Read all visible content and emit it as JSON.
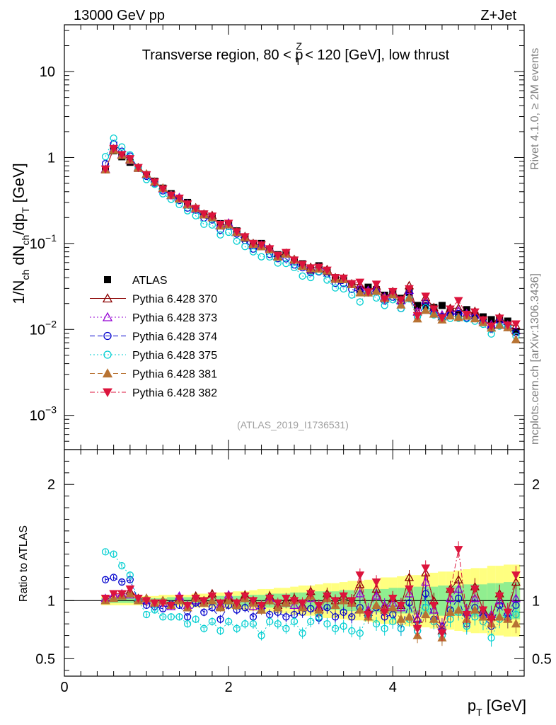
{
  "header": {
    "energy": "13000 GeV pp",
    "process": "Z+Jet"
  },
  "side": {
    "rivet": "Rivet 4.1.0, ≥ 2M events",
    "mcplots": "mcplots.cern.ch [arXiv:1306.3436]"
  },
  "chart_data": {
    "type": "scatter",
    "title": "Transverse region, 80 < p_T^Z < 120 [GeV], low thrust",
    "title_parts": {
      "pre": "Transverse region, 80 < p",
      "sup": "Z",
      "sub": "T",
      "post": " < 120 [GeV], low thrust"
    },
    "analysis": "(ATLAS_2019_I1736531)",
    "ylabel": "1/N_ch dN_ch/dp_T [GeV]",
    "ylabel_parts": [
      "1/N",
      "ch",
      " dN",
      "ch",
      "/dp",
      "T",
      " [GeV]"
    ],
    "xlabel": "p_T [GeV]",
    "xlabel_parts": [
      "p",
      "T",
      " [GeV]"
    ],
    "ratio_ylabel": "Ratio to ATLAS",
    "xlim": [
      0,
      5.6
    ],
    "ylim": [
      0.0004,
      35
    ],
    "ratio_ylim": [
      0.35,
      2.3
    ],
    "yscale": "log",
    "x_ticks": [
      "0",
      "2",
      "4"
    ],
    "y_ticks": [
      {
        "value": 10,
        "base": "10",
        "exp": ""
      },
      {
        "value": 1,
        "base": "1",
        "exp": ""
      },
      {
        "value": 0.1,
        "base": "10",
        "exp": "−1"
      },
      {
        "value": 0.01,
        "base": "10",
        "exp": "−2"
      },
      {
        "value": 0.001,
        "base": "10",
        "exp": "−3"
      }
    ],
    "ratio_ticks": [
      "0.5",
      "1",
      "2"
    ],
    "legend_position": "center-left",
    "x": [
      0.5,
      0.6,
      0.7,
      0.8,
      0.9,
      1.0,
      1.1,
      1.2,
      1.3,
      1.4,
      1.5,
      1.6,
      1.7,
      1.8,
      1.9,
      2.0,
      2.1,
      2.2,
      2.3,
      2.4,
      2.5,
      2.6,
      2.7,
      2.8,
      2.9,
      3.0,
      3.1,
      3.2,
      3.3,
      3.4,
      3.5,
      3.6,
      3.7,
      3.8,
      3.9,
      4.0,
      4.1,
      4.2,
      4.3,
      4.4,
      4.5,
      4.6,
      4.7,
      4.8,
      4.9,
      5.0,
      5.1,
      5.2,
      5.3,
      5.4,
      5.5
    ],
    "atlas": [
      0.72,
      1.2,
      1.02,
      0.88,
      0.75,
      0.63,
      0.53,
      0.44,
      0.38,
      0.33,
      0.3,
      0.25,
      0.22,
      0.2,
      0.17,
      0.165,
      0.14,
      0.115,
      0.1,
      0.1,
      0.085,
      0.074,
      0.077,
      0.064,
      0.058,
      0.049,
      0.055,
      0.047,
      0.04,
      0.038,
      0.034,
      0.029,
      0.031,
      0.029,
      0.025,
      0.027,
      0.023,
      0.027,
      0.019,
      0.019,
      0.018,
      0.019,
      0.016,
      0.015,
      0.017,
      0.0145,
      0.014,
      0.013,
      0.013,
      0.0125,
      0.0095
    ],
    "series": [
      {
        "name": "Pythia 6.428 370",
        "color": "#8b0000",
        "marker": "triangle-open",
        "dash": "",
        "ratio": [
          1.0,
          1.05,
          1.05,
          1.08,
          1.02,
          1.02,
          0.98,
          1.0,
          0.96,
          1.02,
          0.94,
          1.04,
          1.0,
          1.06,
          0.95,
          1.02,
          0.98,
          1.05,
          1.0,
          0.92,
          1.04,
          0.96,
          1.0,
          1.02,
          0.96,
          1.08,
          0.94,
          1.06,
          1.0,
          1.04,
          1.0,
          1.14,
          0.9,
          1.1,
          0.94,
          1.02,
          0.96,
          1.2,
          0.84,
          1.24,
          1.0,
          0.74,
          1.1,
          1.18,
          0.9,
          1.12,
          0.92,
          0.86,
          1.06,
          0.9,
          1.16
        ]
      },
      {
        "name": "Pythia 6.428 373",
        "color": "#9400d3",
        "marker": "triangle-open",
        "dash": "2,3",
        "ratio": [
          1.02,
          1.05,
          1.06,
          1.05,
          1.0,
          1.0,
          0.97,
          0.98,
          0.95,
          1.04,
          0.96,
          1.0,
          0.98,
          1.0,
          0.97,
          1.05,
          0.96,
          1.02,
          0.95,
          0.96,
          1.02,
          0.94,
          0.98,
          0.96,
          0.95,
          1.02,
          0.95,
          1.02,
          0.96,
          1.0,
          0.98,
          1.06,
          0.92,
          1.04,
          0.96,
          0.98,
          0.94,
          1.06,
          0.85,
          1.16,
          0.92,
          0.78,
          1.02,
          1.1,
          0.9,
          1.02,
          0.9,
          0.88,
          1.0,
          0.9,
          1.02
        ]
      },
      {
        "name": "Pythia 6.428 374",
        "color": "#0000cd",
        "marker": "circle-open",
        "dash": "7,4",
        "ratio": [
          1.18,
          1.2,
          1.16,
          1.18,
          1.0,
          0.96,
          0.95,
          0.93,
          0.97,
          0.96,
          0.86,
          0.98,
          0.9,
          0.94,
          0.84,
          0.96,
          0.92,
          0.94,
          0.86,
          0.94,
          0.88,
          0.9,
          0.86,
          0.88,
          0.9,
          0.93,
          0.85,
          0.94,
          0.86,
          0.9,
          0.86,
          0.94,
          0.86,
          0.94,
          0.86,
          0.88,
          0.76,
          0.98,
          0.74,
          1.06,
          0.84,
          0.74,
          0.92,
          1.02,
          0.8,
          0.94,
          0.86,
          0.78,
          0.96,
          0.84,
          0.96
        ]
      },
      {
        "name": "Pythia 6.428 375",
        "color": "#00ced1",
        "marker": "circle-open",
        "dash": "2,3",
        "ratio": [
          1.42,
          1.4,
          1.3,
          1.22,
          1.0,
          0.88,
          0.92,
          0.86,
          0.86,
          0.86,
          0.8,
          0.84,
          0.76,
          0.82,
          0.74,
          0.82,
          0.76,
          0.8,
          0.8,
          0.7,
          0.82,
          0.8,
          0.76,
          0.82,
          0.72,
          0.82,
          0.86,
          0.8,
          0.76,
          0.78,
          0.74,
          0.72,
          0.88,
          0.8,
          0.76,
          0.82,
          0.76,
          0.84,
          0.74,
          0.94,
          0.82,
          0.7,
          0.84,
          0.9,
          0.78,
          0.86,
          0.82,
          0.68,
          0.84,
          0.86,
          0.88
        ]
      },
      {
        "name": "Pythia 6.428 381",
        "color": "#b87333",
        "marker": "triangle-filled",
        "dash": "7,4",
        "ratio": [
          1.0,
          1.02,
          1.04,
          1.06,
          1.0,
          1.02,
          0.98,
          1.0,
          0.96,
          1.0,
          0.94,
          1.02,
          0.98,
          1.0,
          0.94,
          1.0,
          0.96,
          1.02,
          0.98,
          0.92,
          1.0,
          0.94,
          0.98,
          1.0,
          0.94,
          1.04,
          0.92,
          1.02,
          0.96,
          1.0,
          0.98,
          0.92,
          0.86,
          0.96,
          0.92,
          0.94,
          0.84,
          0.86,
          0.7,
          0.88,
          0.84,
          0.68,
          0.9,
          0.92,
          0.84,
          0.92,
          0.86,
          0.8,
          0.86,
          0.84,
          0.8
        ]
      },
      {
        "name": "Pythia 6.428 382",
        "color": "#dc143c",
        "marker": "triangle-down-filled",
        "dash": "7,3,2,3",
        "ratio": [
          1.02,
          1.06,
          1.06,
          1.1,
          1.02,
          1.0,
          0.98,
          0.98,
          0.96,
          1.02,
          0.96,
          1.02,
          1.0,
          1.04,
          0.98,
          1.04,
          0.98,
          1.04,
          1.0,
          0.96,
          1.02,
          0.98,
          1.02,
          1.0,
          0.98,
          1.06,
          0.96,
          1.04,
          1.0,
          1.04,
          1.0,
          1.22,
          0.88,
          1.16,
          0.9,
          1.02,
          0.96,
          1.1,
          0.76,
          1.28,
          0.96,
          0.72,
          1.08,
          1.44,
          0.88,
          1.1,
          0.92,
          0.84,
          1.04,
          0.9,
          1.22
        ]
      }
    ],
    "band_outer": [
      0.04,
      0.04,
      0.04,
      0.04,
      0.04,
      0.04,
      0.04,
      0.05,
      0.05,
      0.05,
      0.05,
      0.06,
      0.06,
      0.06,
      0.07,
      0.07,
      0.08,
      0.08,
      0.09,
      0.1,
      0.1,
      0.11,
      0.11,
      0.12,
      0.13,
      0.13,
      0.14,
      0.15,
      0.15,
      0.16,
      0.17,
      0.17,
      0.18,
      0.19,
      0.2,
      0.2,
      0.21,
      0.22,
      0.22,
      0.23,
      0.24,
      0.25,
      0.25,
      0.26,
      0.27,
      0.28,
      0.28,
      0.3,
      0.3,
      0.31,
      0.31
    ],
    "band_inner": [
      0.02,
      0.02,
      0.02,
      0.02,
      0.02,
      0.02,
      0.02,
      0.02,
      0.03,
      0.03,
      0.03,
      0.03,
      0.03,
      0.04,
      0.04,
      0.04,
      0.04,
      0.05,
      0.05,
      0.05,
      0.06,
      0.06,
      0.06,
      0.07,
      0.07,
      0.07,
      0.08,
      0.08,
      0.08,
      0.09,
      0.09,
      0.09,
      0.1,
      0.1,
      0.1,
      0.11,
      0.11,
      0.11,
      0.12,
      0.12,
      0.12,
      0.13,
      0.13,
      0.13,
      0.14,
      0.14,
      0.14,
      0.15,
      0.15,
      0.16,
      0.16
    ],
    "colors": {
      "band_outer": "#ffff80",
      "band_inner": "#90ee90",
      "data": "#000000"
    }
  }
}
